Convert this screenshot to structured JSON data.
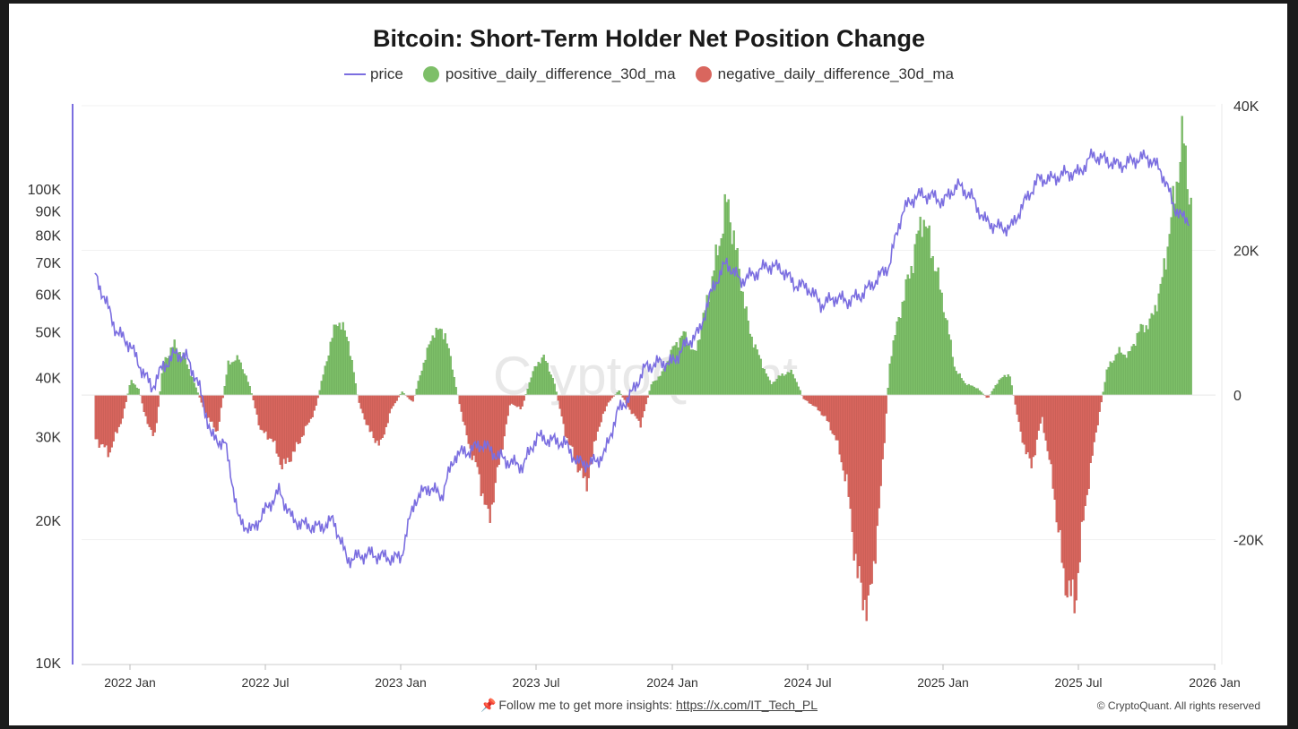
{
  "chart_data": {
    "type": "bar",
    "title": "Bitcoin: Short-Term Holder Net Position Change",
    "watermark": "CryptoQuant",
    "legend": [
      {
        "name": "price",
        "kind": "line",
        "color": "#7b6ee0"
      },
      {
        "name": "positive_daily_difference_30d_ma",
        "kind": "dot",
        "color": "#7dbf68"
      },
      {
        "name": "negative_daily_difference_30d_ma",
        "kind": "dot",
        "color": "#d9665e"
      }
    ],
    "x_ticks": [
      "2022 Jan",
      "2022 Jul",
      "2023 Jan",
      "2023 Jul",
      "2024 Jan",
      "2024 Jul",
      "2025 Jan",
      "2025 Jul",
      "2026 Jan"
    ],
    "x_range": [
      "2021-10-15",
      "2026-01-01"
    ],
    "left_axis": {
      "scale": "log",
      "range": [
        10000,
        150000
      ],
      "ticks": [
        {
          "v": 10000,
          "label": "10K"
        },
        {
          "v": 20000,
          "label": "20K"
        },
        {
          "v": 30000,
          "label": "30K"
        },
        {
          "v": 40000,
          "label": "40K"
        },
        {
          "v": 50000,
          "label": "50K"
        },
        {
          "v": 60000,
          "label": "60K"
        },
        {
          "v": 70000,
          "label": "70K"
        },
        {
          "v": 80000,
          "label": "80K"
        },
        {
          "v": 90000,
          "label": "90K"
        },
        {
          "v": 100000,
          "label": "100K"
        }
      ]
    },
    "right_axis": {
      "scale": "linear",
      "range": [
        -37000,
        40000
      ],
      "ticks": [
        {
          "v": 40000,
          "label": "40K"
        },
        {
          "v": 20000,
          "label": "20K"
        },
        {
          "v": 0,
          "label": "0"
        },
        {
          "v": -20000,
          "label": "-20K"
        }
      ]
    },
    "price_series": {
      "name": "price",
      "x": [
        2021.87,
        2021.9,
        2021.95,
        2022.0,
        2022.03,
        2022.08,
        2022.12,
        2022.17,
        2022.21,
        2022.25,
        2022.3,
        2022.35,
        2022.4,
        2022.45,
        2022.5,
        2022.55,
        2022.6,
        2022.65,
        2022.7,
        2022.75,
        2022.8,
        2022.85,
        2022.88,
        2022.92,
        2022.97,
        2023.0,
        2023.05,
        2023.1,
        2023.15,
        2023.2,
        2023.25,
        2023.3,
        2023.35,
        2023.4,
        2023.45,
        2023.5,
        2023.55,
        2023.6,
        2023.65,
        2023.7,
        2023.75,
        2023.8,
        2023.85,
        2023.9,
        2023.95,
        2024.0,
        2024.05,
        2024.1,
        2024.15,
        2024.2,
        2024.25,
        2024.3,
        2024.35,
        2024.4,
        2024.45,
        2024.5,
        2024.55,
        2024.6,
        2024.65,
        2024.7,
        2024.75,
        2024.8,
        2024.85,
        2024.9,
        2024.95,
        2025.0,
        2025.05,
        2025.1,
        2025.15,
        2025.2,
        2025.25,
        2025.3,
        2025.35,
        2025.4,
        2025.45,
        2025.5,
        2025.55,
        2025.6,
        2025.65,
        2025.7,
        2025.75,
        2025.8,
        2025.85,
        2025.88,
        2025.91
      ],
      "y": [
        66000,
        60000,
        50000,
        47000,
        43000,
        38000,
        42000,
        45000,
        44000,
        39000,
        30000,
        29000,
        20000,
        19000,
        21000,
        23000,
        20000,
        19500,
        19300,
        20000,
        16500,
        16800,
        17000,
        16800,
        16600,
        16700,
        22000,
        23500,
        22500,
        27500,
        28000,
        29000,
        27500,
        26500,
        26000,
        30000,
        29500,
        29200,
        26500,
        26300,
        27500,
        34000,
        37000,
        42000,
        43000,
        43000,
        47000,
        50000,
        62000,
        70000,
        64000,
        66000,
        69000,
        68000,
        63000,
        62000,
        57000,
        59000,
        58000,
        60000,
        64000,
        69000,
        90000,
        97000,
        97000,
        94000,
        102000,
        97000,
        86000,
        83000,
        83000,
        94000,
        105000,
        105000,
        108000,
        108000,
        118000,
        115000,
        112000,
        115000,
        117000,
        110000,
        92000,
        87000,
        86000
      ]
    },
    "net_position_series": {
      "name": "daily_difference_30d_ma",
      "x": [
        2021.87,
        2021.92,
        2021.97,
        2022.0,
        2022.03,
        2022.06,
        2022.09,
        2022.12,
        2022.16,
        2022.2,
        2022.24,
        2022.28,
        2022.32,
        2022.36,
        2022.4,
        2022.44,
        2022.48,
        2022.52,
        2022.56,
        2022.6,
        2022.64,
        2022.68,
        2022.72,
        2022.76,
        2022.8,
        2022.84,
        2022.88,
        2022.92,
        2022.96,
        2023.0,
        2023.04,
        2023.08,
        2023.12,
        2023.16,
        2023.2,
        2023.24,
        2023.28,
        2023.32,
        2023.36,
        2023.4,
        2023.44,
        2023.48,
        2023.52,
        2023.56,
        2023.6,
        2023.64,
        2023.68,
        2023.72,
        2023.76,
        2023.8,
        2023.84,
        2023.88,
        2023.92,
        2023.96,
        2024.0,
        2024.04,
        2024.08,
        2024.12,
        2024.16,
        2024.2,
        2024.24,
        2024.28,
        2024.32,
        2024.36,
        2024.4,
        2024.44,
        2024.48,
        2024.52,
        2024.56,
        2024.6,
        2024.64,
        2024.68,
        2024.72,
        2024.76,
        2024.8,
        2024.84,
        2024.88,
        2024.92,
        2024.96,
        2025.0,
        2025.04,
        2025.08,
        2025.12,
        2025.16,
        2025.2,
        2025.24,
        2025.28,
        2025.32,
        2025.36,
        2025.4,
        2025.44,
        2025.48,
        2025.52,
        2025.56,
        2025.6,
        2025.64,
        2025.68,
        2025.72,
        2025.76,
        2025.8,
        2025.84,
        2025.88,
        2025.91
      ],
      "y": [
        -6000,
        -8000,
        -3000,
        2000,
        800,
        -4000,
        -5500,
        4500,
        7000,
        5000,
        1000,
        -3000,
        -5000,
        4500,
        5000,
        1000,
        -5000,
        -6000,
        -10000,
        -8000,
        -5000,
        -2000,
        4500,
        10500,
        8000,
        -1000,
        -5000,
        -7000,
        -2000,
        500,
        -1000,
        4500,
        9000,
        8500,
        1000,
        -6000,
        -10500,
        -17500,
        -9000,
        -1000,
        -2000,
        3000,
        5500,
        2000,
        -5000,
        -9000,
        -12500,
        -5000,
        -1000,
        600,
        -2000,
        -4000,
        1500,
        3000,
        6500,
        8500,
        5500,
        12000,
        19000,
        27000,
        18000,
        9000,
        5000,
        1500,
        2800,
        3200,
        -500,
        -1500,
        -3000,
        -6000,
        -12000,
        -25000,
        -30000,
        -16000,
        5000,
        12000,
        18000,
        25000,
        19000,
        12000,
        3500,
        1500,
        1000,
        -500,
        2000,
        3000,
        -5000,
        -10000,
        -3000,
        -12000,
        -25000,
        -29000,
        -15000,
        -5000,
        3500,
        6000,
        5500,
        9000,
        10000,
        15000,
        25000,
        36000,
        26000
      ]
    }
  },
  "footer": {
    "text": "Follow me to get more insights:",
    "link": "https://x.com/IT_Tech_PL",
    "copyright": "© CryptoQuant. All rights reserved"
  }
}
